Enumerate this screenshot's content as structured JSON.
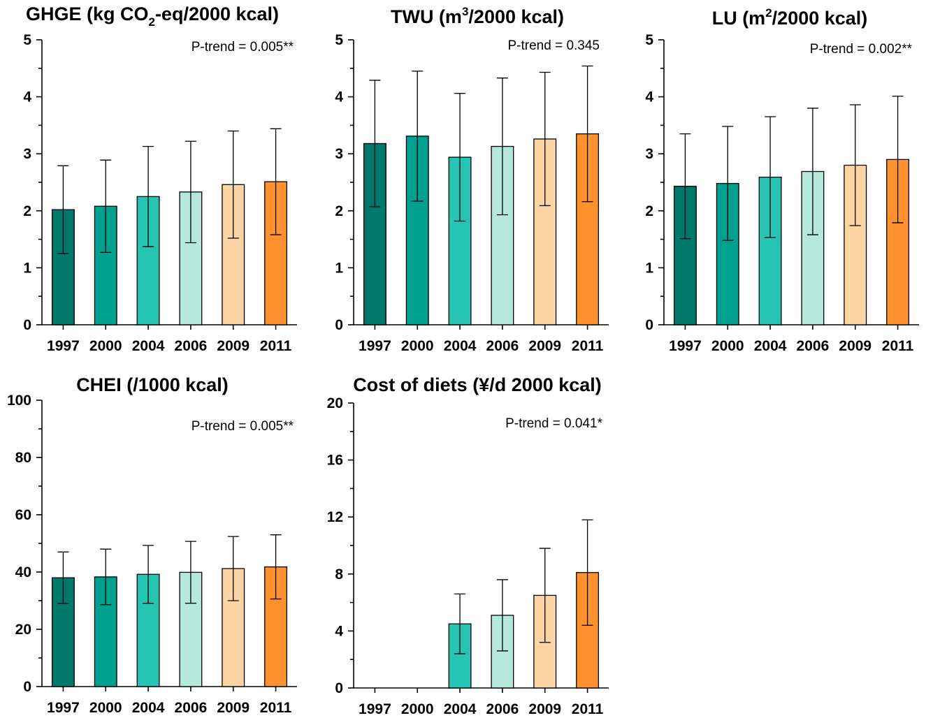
{
  "chart_data": [
    {
      "type": "bar",
      "id": "ghge",
      "title_main": "GHGE (kg CO",
      "title_sub": "2",
      "title_tail": "-eq/2000 kcal)",
      "sub_mode": "sub",
      "categories": [
        "1997",
        "2000",
        "2004",
        "2006",
        "2009",
        "2011"
      ],
      "values": [
        2.02,
        2.08,
        2.25,
        2.33,
        2.46,
        2.51
      ],
      "errors": [
        0.77,
        0.81,
        0.88,
        0.89,
        0.94,
        0.93
      ],
      "ylim": [
        0,
        5
      ],
      "yticks": [
        0,
        1,
        2,
        3,
        4,
        5
      ],
      "ptrend": "P-trend = 0.005**"
    },
    {
      "type": "bar",
      "id": "twu",
      "title_main": "TWU (m",
      "title_sub": "3",
      "title_tail": "/2000 kcal)",
      "sub_mode": "super",
      "categories": [
        "1997",
        "2000",
        "2004",
        "2006",
        "2009",
        "2011"
      ],
      "values": [
        3.18,
        3.31,
        2.94,
        3.13,
        3.26,
        3.35
      ],
      "errors": [
        1.11,
        1.14,
        1.12,
        1.2,
        1.17,
        1.19
      ],
      "ylim": [
        0,
        5
      ],
      "yticks": [
        0,
        1,
        2,
        3,
        4,
        5
      ],
      "ptrend": "P-trend = 0.345"
    },
    {
      "type": "bar",
      "id": "lu",
      "title_main": "LU (m",
      "title_sub": "2",
      "title_tail": "/2000 kcal)",
      "sub_mode": "super",
      "categories": [
        "1997",
        "2000",
        "2004",
        "2006",
        "2009",
        "2011"
      ],
      "values": [
        2.43,
        2.48,
        2.59,
        2.69,
        2.8,
        2.9
      ],
      "errors": [
        0.92,
        1.0,
        1.06,
        1.11,
        1.06,
        1.11
      ],
      "ylim": [
        0,
        5
      ],
      "yticks": [
        0,
        1,
        2,
        3,
        4,
        5
      ],
      "ptrend": "P-trend = 0.002**"
    },
    {
      "type": "bar",
      "id": "chei",
      "title_main": "CHEI (/1000 kcal)",
      "title_sub": "",
      "title_tail": "",
      "sub_mode": "none",
      "categories": [
        "1997",
        "2000",
        "2004",
        "2006",
        "2009",
        "2011"
      ],
      "values": [
        38.0,
        38.3,
        39.2,
        39.9,
        41.2,
        41.8
      ],
      "errors": [
        9.0,
        9.7,
        10.1,
        10.8,
        11.2,
        11.2
      ],
      "ylim": [
        0,
        100
      ],
      "yticks": [
        0,
        20,
        40,
        60,
        80,
        100
      ],
      "ptrend": "P-trend = 0.005**"
    },
    {
      "type": "bar",
      "id": "cost",
      "title_main": "Cost of diets (¥/d 2000 kcal)",
      "title_sub": "",
      "title_tail": "",
      "sub_mode": "none",
      "categories": [
        "1997",
        "2000",
        "2004",
        "2006",
        "2009",
        "2011"
      ],
      "values": [
        null,
        null,
        4.5,
        5.1,
        6.5,
        8.1
      ],
      "errors": [
        null,
        null,
        2.1,
        2.5,
        3.3,
        3.7
      ],
      "ylim": [
        0,
        20
      ],
      "yticks": [
        0,
        4,
        8,
        12,
        16,
        20
      ],
      "ptrend": "P-trend = 0.041*"
    }
  ],
  "colors": [
    "#00786b",
    "#00a091",
    "#26c4b3",
    "#b5e8da",
    "#fdd5a5",
    "#ff922e"
  ]
}
